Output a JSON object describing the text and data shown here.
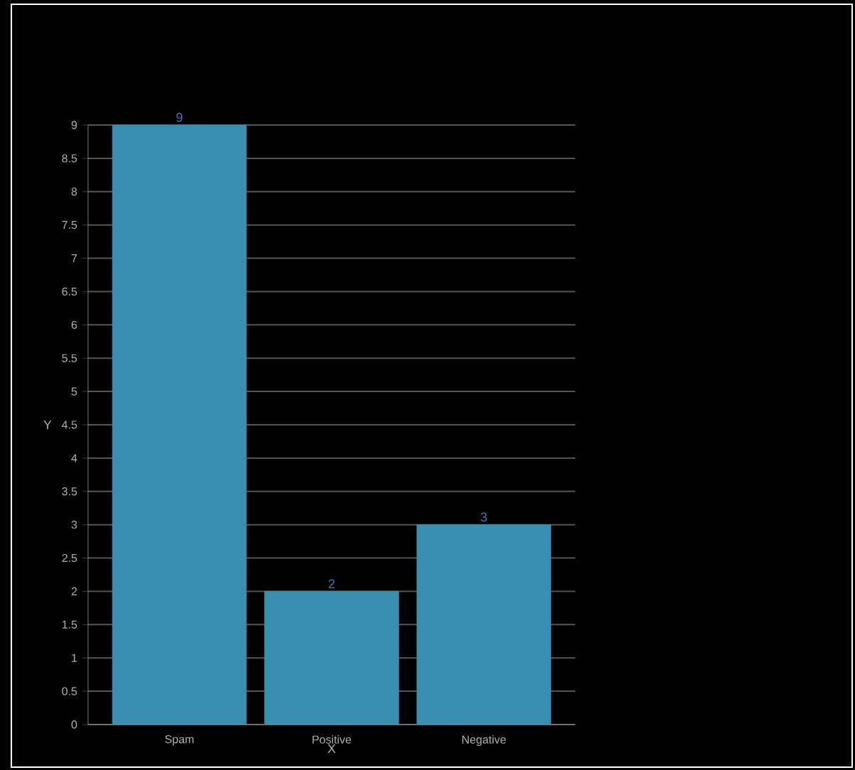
{
  "chart_data": {
    "type": "bar",
    "xlabel": "X",
    "ylabel": "Y",
    "categories": [
      "Spam",
      "Positive",
      "Negative"
    ],
    "values": [
      9,
      2,
      3
    ],
    "color": "#3a8fb0",
    "data_labels": true,
    "grid": "y",
    "ylim": [
      0,
      9
    ],
    "yticks": [
      0,
      0.5,
      1,
      1.5,
      2,
      2.5,
      3,
      3.5,
      4,
      4.5,
      5,
      5.5,
      6,
      6.5,
      7,
      7.5,
      8,
      8.5,
      9
    ]
  }
}
